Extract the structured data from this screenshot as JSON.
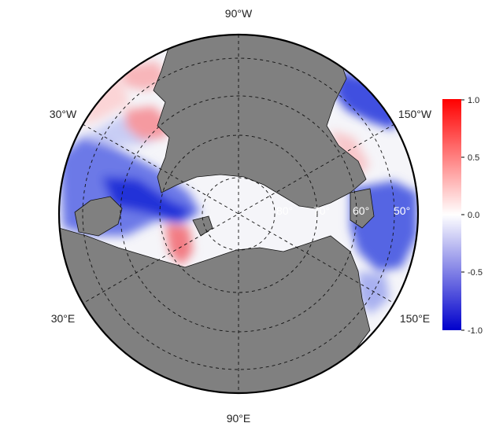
{
  "map": {
    "longitude_labels": {
      "top": "90°W",
      "bottom": "90°E",
      "upper_left": "30°W",
      "upper_right": "150°W",
      "lower_left": "30°E",
      "lower_right": "150°E"
    },
    "latitude_labels": [
      "80°",
      "70°",
      "60°",
      "50°"
    ],
    "land_color": "#808080",
    "ocean_bg_color": "#f4f4f8"
  },
  "colorbar": {
    "min": -1.0,
    "max": 1.0,
    "ticks": [
      "1.0",
      "0.5",
      "0.0",
      "-0.5",
      "-1.0"
    ],
    "colors": {
      "high": "#ff0000",
      "mid": "#ffffff",
      "low": "#0000cc"
    }
  }
}
